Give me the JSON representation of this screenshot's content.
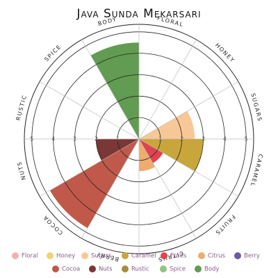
{
  "chart_data": {
    "type": "rose",
    "title": "Java Sunda Mekarsari",
    "categories": [
      "Floral",
      "Honey",
      "Sugars",
      "Caramel",
      "Fruits",
      "Citrus",
      "Berry",
      "Cocoa",
      "Nuts",
      "Rustic",
      "Spice",
      "Body"
    ],
    "values": [
      0,
      0,
      2.6,
      3,
      1.3,
      1.5,
      0,
      4.8,
      2,
      0,
      0,
      4.5
    ],
    "colors": [
      "#f4b0b4",
      "#f2d36b",
      "#f7c896",
      "#c9a63c",
      "#e0434f",
      "#eeac70",
      "#6e5aa3",
      "#c0594a",
      "#7b3636",
      "#a98b3c",
      "#92c47d",
      "#629b52"
    ],
    "rlim": [
      0,
      5.35
    ],
    "rticks": [
      1,
      2,
      3,
      4,
      5
    ]
  }
}
